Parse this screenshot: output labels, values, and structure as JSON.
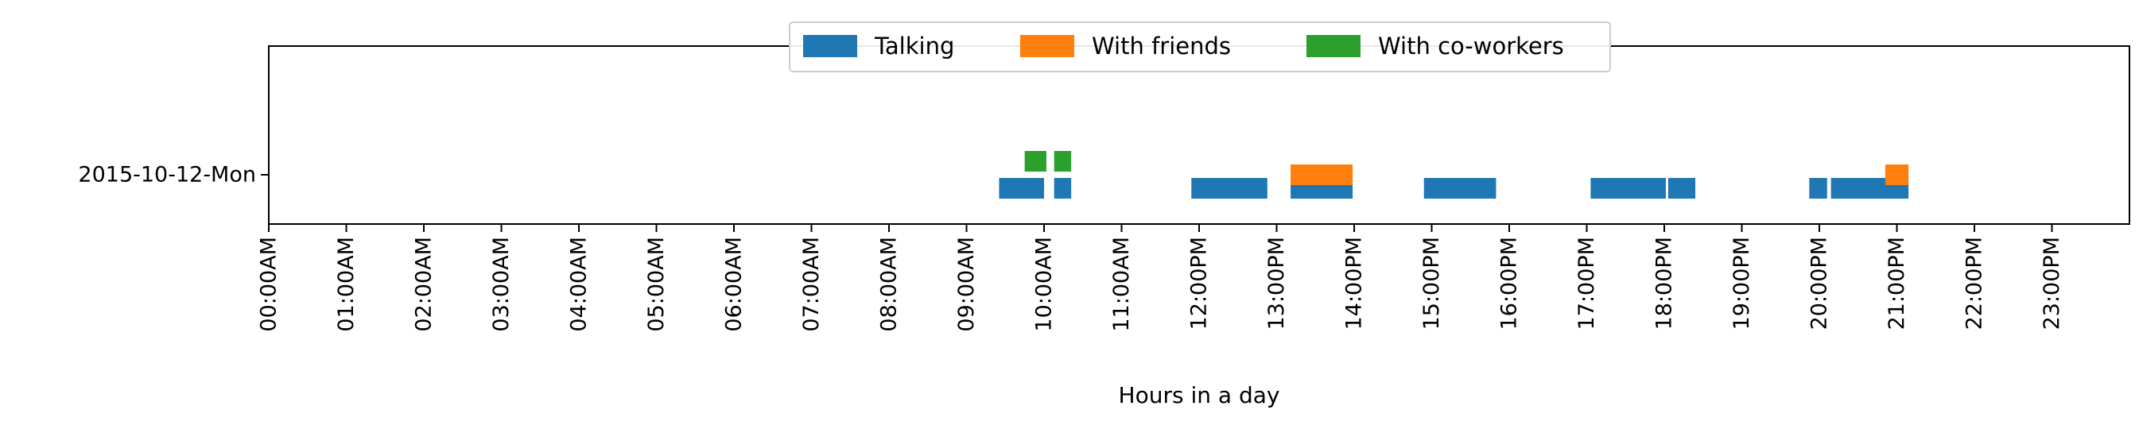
{
  "chart_data": {
    "type": "timeline",
    "xlabel": "Hours in a day",
    "xlim": [
      0,
      24
    ],
    "x_ticks": [
      {
        "value": 0,
        "label": "00:00AM"
      },
      {
        "value": 1,
        "label": "01:00AM"
      },
      {
        "value": 2,
        "label": "02:00AM"
      },
      {
        "value": 3,
        "label": "03:00AM"
      },
      {
        "value": 4,
        "label": "04:00AM"
      },
      {
        "value": 5,
        "label": "05:00AM"
      },
      {
        "value": 6,
        "label": "06:00AM"
      },
      {
        "value": 7,
        "label": "07:00AM"
      },
      {
        "value": 8,
        "label": "08:00AM"
      },
      {
        "value": 9,
        "label": "09:00AM"
      },
      {
        "value": 10,
        "label": "10:00AM"
      },
      {
        "value": 11,
        "label": "11:00AM"
      },
      {
        "value": 12,
        "label": "12:00PM"
      },
      {
        "value": 13,
        "label": "13:00PM"
      },
      {
        "value": 14,
        "label": "14:00PM"
      },
      {
        "value": 15,
        "label": "15:00PM"
      },
      {
        "value": 16,
        "label": "16:00PM"
      },
      {
        "value": 17,
        "label": "17:00PM"
      },
      {
        "value": 18,
        "label": "18:00PM"
      },
      {
        "value": 19,
        "label": "19:00PM"
      },
      {
        "value": 20,
        "label": "20:00PM"
      },
      {
        "value": 21,
        "label": "21:00PM"
      },
      {
        "value": 22,
        "label": "22:00PM"
      },
      {
        "value": 23,
        "label": "23:00PM"
      }
    ],
    "categories": [
      "2015-10-12-Mon"
    ],
    "legend_position": "top-center",
    "grid": false,
    "series": [
      {
        "name": "Talking",
        "color": "#1f77b4",
        "intervals": [
          [
            9.42,
            10.0
          ],
          [
            10.13,
            10.35
          ],
          [
            11.9,
            12.88
          ],
          [
            13.18,
            13.98
          ],
          [
            14.9,
            15.83
          ],
          [
            17.05,
            18.02
          ],
          [
            18.05,
            18.4
          ],
          [
            19.87,
            20.1
          ],
          [
            20.15,
            21.15
          ]
        ]
      },
      {
        "name": "With friends",
        "color": "#ff7f0e",
        "intervals": [
          [
            13.18,
            13.98
          ],
          [
            20.85,
            21.15
          ]
        ]
      },
      {
        "name": "With co-workers",
        "color": "#2ca02c",
        "intervals": [
          [
            9.75,
            10.03
          ],
          [
            10.13,
            10.35
          ]
        ]
      }
    ]
  }
}
